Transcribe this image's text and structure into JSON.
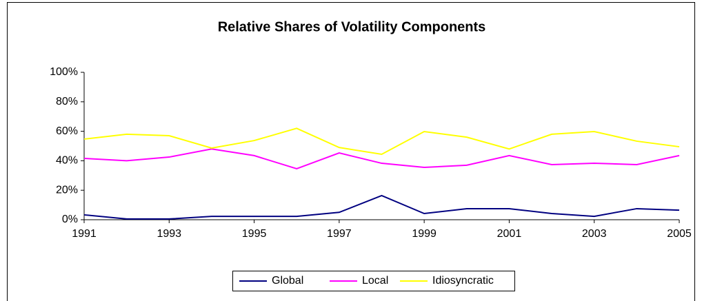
{
  "chart_data": {
    "type": "line",
    "title": "Relative Shares of Volatility Components",
    "x": [
      1991,
      1992,
      1993,
      1994,
      1995,
      1996,
      1997,
      1998,
      1999,
      2000,
      2001,
      2002,
      2003,
      2004,
      2005
    ],
    "xlim": [
      1991,
      2005
    ],
    "xticks": [
      1991,
      1993,
      1995,
      1997,
      1999,
      2001,
      2003,
      2005
    ],
    "ylim": [
      0,
      100
    ],
    "yticks": [
      {
        "value": 0,
        "label": "0%"
      },
      {
        "value": 20,
        "label": "20%"
      },
      {
        "value": 40,
        "label": "40%"
      },
      {
        "value": 60,
        "label": "60%"
      },
      {
        "value": 80,
        "label": "80%"
      },
      {
        "value": 100,
        "label": "100%"
      }
    ],
    "grid": false,
    "legend": "bottom",
    "series": [
      {
        "name": "Global",
        "color": "#000080",
        "values": [
          3.3,
          0.5,
          0.5,
          2.3,
          2.3,
          2.3,
          5,
          16.4,
          4.2,
          7.5,
          7.5,
          4.2,
          2.3,
          7.5,
          6.5
        ]
      },
      {
        "name": "Local",
        "color": "#ff00ff",
        "values": [
          41.6,
          40,
          42.5,
          48,
          43.5,
          34.6,
          45.3,
          38.3,
          35.5,
          37,
          43.5,
          37.4,
          38.3,
          37.4,
          43.5
        ]
      },
      {
        "name": "Idiosyncratic",
        "color": "#ffff00",
        "values": [
          54.7,
          58,
          57,
          48.6,
          53.7,
          62,
          49,
          44.4,
          59.8,
          56,
          48,
          58,
          59.8,
          53.3,
          49.5
        ]
      }
    ]
  }
}
